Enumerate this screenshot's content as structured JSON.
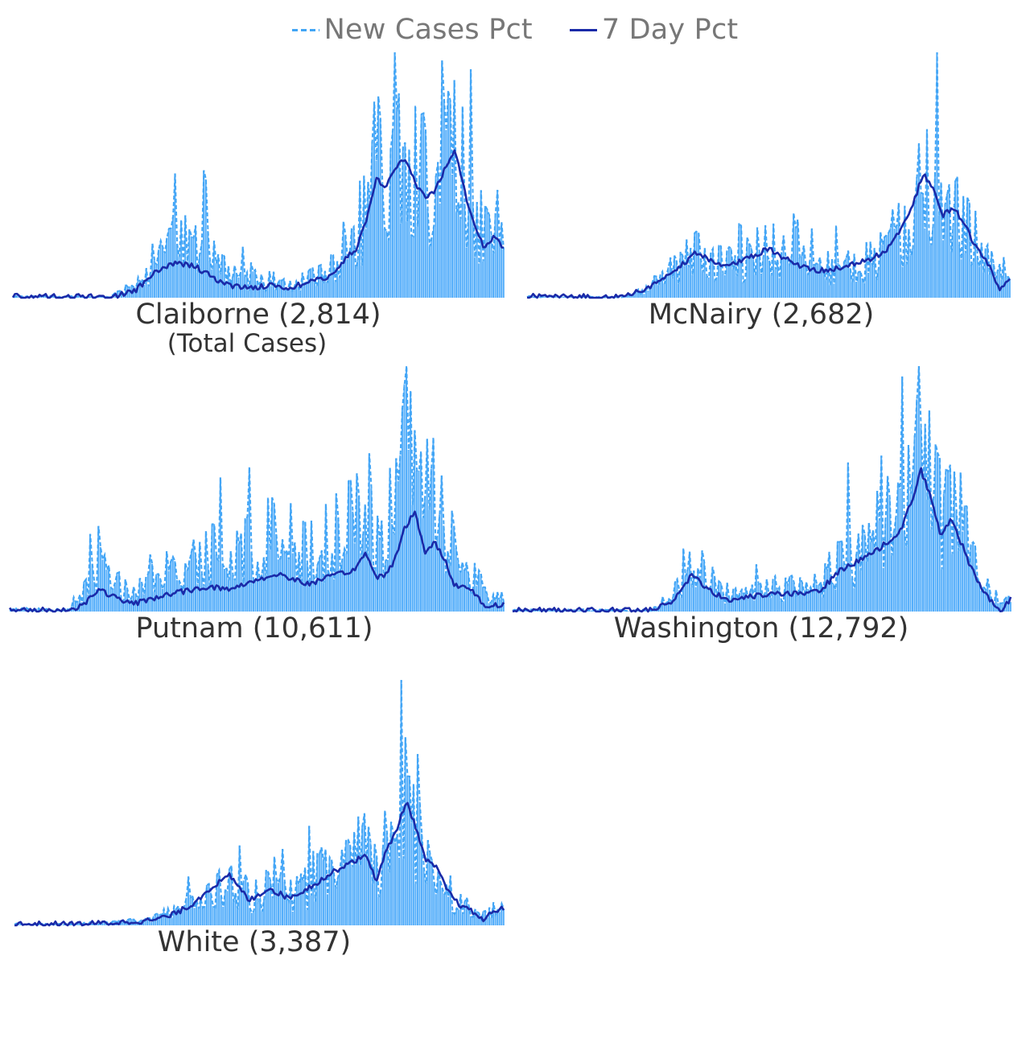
{
  "legend": {
    "new_cases_label": "New Cases Pct",
    "seven_day_label": "7 Day Pct"
  },
  "colors": {
    "bars": "#55aefa",
    "new_cases_line": "#42a5f5",
    "seven_day_line": "#1a2aa8"
  },
  "chart_data": [
    {
      "type": "line",
      "title": "Claiborne (2,814)",
      "subtitle": "(Total Cases)",
      "series_names": [
        "New Cases Pct",
        "7 Day Pct"
      ],
      "x_range": [
        0,
        100
      ],
      "y_range": [
        0,
        100
      ],
      "shape_knots": [
        [
          0,
          0.5
        ],
        [
          20,
          0.3
        ],
        [
          25,
          5
        ],
        [
          29,
          13
        ],
        [
          33,
          18
        ],
        [
          37,
          21
        ],
        [
          40,
          14
        ],
        [
          44,
          8
        ],
        [
          48,
          6
        ],
        [
          52,
          6
        ],
        [
          56,
          5
        ],
        [
          60,
          7
        ],
        [
          64,
          8
        ],
        [
          67,
          16
        ],
        [
          70,
          22
        ],
        [
          72,
          33
        ],
        [
          74,
          50
        ],
        [
          76,
          46
        ],
        [
          78,
          54
        ],
        [
          80,
          57
        ],
        [
          82,
          45
        ],
        [
          84,
          40
        ],
        [
          86,
          45
        ],
        [
          88,
          53
        ],
        [
          90,
          60
        ],
        [
          92,
          42
        ],
        [
          94,
          30
        ],
        [
          96,
          20
        ],
        [
          98,
          28
        ],
        [
          100,
          22
        ]
      ],
      "seven_day_knots": [
        [
          0,
          0.5
        ],
        [
          20,
          0.3
        ],
        [
          25,
          3
        ],
        [
          29,
          10
        ],
        [
          33,
          14
        ],
        [
          37,
          13
        ],
        [
          40,
          9
        ],
        [
          44,
          5
        ],
        [
          48,
          4
        ],
        [
          52,
          5
        ],
        [
          56,
          4
        ],
        [
          60,
          6
        ],
        [
          64,
          8
        ],
        [
          67,
          14
        ],
        [
          70,
          20
        ],
        [
          72,
          31
        ],
        [
          74,
          48
        ],
        [
          76,
          45
        ],
        [
          78,
          53
        ],
        [
          80,
          56
        ],
        [
          82,
          46
        ],
        [
          84,
          40
        ],
        [
          86,
          43
        ],
        [
          88,
          52
        ],
        [
          90,
          60
        ],
        [
          92,
          43
        ],
        [
          94,
          30
        ],
        [
          96,
          20
        ],
        [
          98,
          25
        ],
        [
          100,
          20
        ]
      ]
    },
    {
      "type": "line",
      "title": "McNairy (2,682)",
      "series_names": [
        "New Cases Pct",
        "7 Day Pct"
      ],
      "x_range": [
        0,
        100
      ],
      "y_range": [
        0,
        100
      ],
      "shape_knots": [
        [
          0,
          0.5
        ],
        [
          20,
          0.3
        ],
        [
          24,
          4
        ],
        [
          30,
          12
        ],
        [
          35,
          20
        ],
        [
          40,
          15
        ],
        [
          45,
          18
        ],
        [
          50,
          22
        ],
        [
          55,
          17
        ],
        [
          60,
          12
        ],
        [
          65,
          14
        ],
        [
          70,
          16
        ],
        [
          74,
          20
        ],
        [
          77,
          28
        ],
        [
          80,
          40
        ],
        [
          82,
          50
        ],
        [
          84,
          45
        ],
        [
          86,
          36
        ],
        [
          88,
          38
        ],
        [
          90,
          34
        ],
        [
          92,
          28
        ],
        [
          94,
          20
        ],
        [
          96,
          14
        ],
        [
          98,
          10
        ],
        [
          100,
          8
        ]
      ],
      "seven_day_knots": [
        [
          0,
          0.5
        ],
        [
          20,
          0.3
        ],
        [
          24,
          3
        ],
        [
          30,
          10
        ],
        [
          35,
          18
        ],
        [
          40,
          13
        ],
        [
          45,
          15
        ],
        [
          50,
          20
        ],
        [
          55,
          14
        ],
        [
          60,
          11
        ],
        [
          65,
          12
        ],
        [
          70,
          15
        ],
        [
          74,
          18
        ],
        [
          77,
          26
        ],
        [
          80,
          38
        ],
        [
          82,
          50
        ],
        [
          84,
          44
        ],
        [
          86,
          33
        ],
        [
          88,
          36
        ],
        [
          90,
          32
        ],
        [
          92,
          24
        ],
        [
          94,
          18
        ],
        [
          96,
          12
        ],
        [
          98,
          3
        ],
        [
          100,
          7
        ]
      ]
    },
    {
      "type": "line",
      "title": "Putnam (10,611)",
      "series_names": [
        "New Cases Pct",
        "7 Day Pct"
      ],
      "x_range": [
        0,
        100
      ],
      "y_range": [
        0,
        100
      ],
      "shape_knots": [
        [
          0,
          0.5
        ],
        [
          12,
          0.5
        ],
        [
          15,
          5
        ],
        [
          18,
          12
        ],
        [
          22,
          6
        ],
        [
          25,
          4
        ],
        [
          30,
          7
        ],
        [
          35,
          10
        ],
        [
          40,
          12
        ],
        [
          45,
          10
        ],
        [
          50,
          14
        ],
        [
          55,
          16
        ],
        [
          60,
          12
        ],
        [
          65,
          15
        ],
        [
          70,
          18
        ],
        [
          72,
          25
        ],
        [
          74,
          14
        ],
        [
          76,
          16
        ],
        [
          78,
          22
        ],
        [
          80,
          36
        ],
        [
          82,
          42
        ],
        [
          84,
          26
        ],
        [
          86,
          28
        ],
        [
          88,
          22
        ],
        [
          90,
          12
        ],
        [
          92,
          10
        ],
        [
          94,
          8
        ],
        [
          96,
          4
        ],
        [
          100,
          3
        ]
      ],
      "seven_day_knots": [
        [
          0,
          0.5
        ],
        [
          12,
          0.5
        ],
        [
          15,
          3
        ],
        [
          18,
          9
        ],
        [
          22,
          5
        ],
        [
          25,
          3
        ],
        [
          30,
          6
        ],
        [
          35,
          8
        ],
        [
          40,
          10
        ],
        [
          45,
          9
        ],
        [
          50,
          13
        ],
        [
          55,
          15
        ],
        [
          60,
          11
        ],
        [
          65,
          14
        ],
        [
          70,
          17
        ],
        [
          72,
          24
        ],
        [
          74,
          14
        ],
        [
          76,
          15
        ],
        [
          78,
          21
        ],
        [
          80,
          34
        ],
        [
          82,
          40
        ],
        [
          84,
          24
        ],
        [
          86,
          28
        ],
        [
          88,
          21
        ],
        [
          90,
          11
        ],
        [
          92,
          10
        ],
        [
          94,
          8
        ],
        [
          96,
          2
        ],
        [
          100,
          3
        ]
      ]
    },
    {
      "type": "line",
      "title": "Washington (12,792)",
      "series_names": [
        "New Cases Pct",
        "7 Day Pct"
      ],
      "x_range": [
        0,
        100
      ],
      "y_range": [
        0,
        100
      ],
      "shape_knots": [
        [
          0,
          0.5
        ],
        [
          28,
          0.5
        ],
        [
          32,
          6
        ],
        [
          36,
          14
        ],
        [
          40,
          10
        ],
        [
          44,
          5
        ],
        [
          48,
          6
        ],
        [
          52,
          8
        ],
        [
          58,
          8
        ],
        [
          62,
          10
        ],
        [
          66,
          18
        ],
        [
          70,
          22
        ],
        [
          74,
          28
        ],
        [
          78,
          35
        ],
        [
          80,
          45
        ],
        [
          82,
          56
        ],
        [
          84,
          48
        ],
        [
          86,
          36
        ],
        [
          88,
          42
        ],
        [
          90,
          30
        ],
        [
          92,
          20
        ],
        [
          94,
          12
        ],
        [
          96,
          6
        ],
        [
          98,
          4
        ],
        [
          100,
          5
        ]
      ],
      "seven_day_knots": [
        [
          0,
          0.5
        ],
        [
          28,
          0.5
        ],
        [
          32,
          4
        ],
        [
          36,
          15
        ],
        [
          40,
          8
        ],
        [
          44,
          4
        ],
        [
          48,
          6
        ],
        [
          52,
          7
        ],
        [
          58,
          7
        ],
        [
          62,
          9
        ],
        [
          66,
          17
        ],
        [
          70,
          21
        ],
        [
          74,
          26
        ],
        [
          78,
          33
        ],
        [
          80,
          44
        ],
        [
          82,
          57
        ],
        [
          84,
          46
        ],
        [
          86,
          30
        ],
        [
          88,
          38
        ],
        [
          90,
          28
        ],
        [
          92,
          18
        ],
        [
          94,
          10
        ],
        [
          96,
          4
        ],
        [
          98,
          0
        ],
        [
          100,
          5
        ]
      ]
    },
    {
      "type": "line",
      "title": "White (3,387)",
      "series_names": [
        "New Cases Pct",
        "7 Day Pct"
      ],
      "x_range": [
        0,
        100
      ],
      "y_range": [
        0,
        100
      ],
      "shape_knots": [
        [
          0,
          0.5
        ],
        [
          12,
          0.5
        ],
        [
          20,
          1.5
        ],
        [
          28,
          3
        ],
        [
          32,
          5
        ],
        [
          36,
          8
        ],
        [
          40,
          13
        ],
        [
          44,
          18
        ],
        [
          48,
          12
        ],
        [
          52,
          15
        ],
        [
          56,
          12
        ],
        [
          60,
          16
        ],
        [
          64,
          22
        ],
        [
          68,
          26
        ],
        [
          72,
          30
        ],
        [
          74,
          20
        ],
        [
          76,
          34
        ],
        [
          78,
          40
        ],
        [
          80,
          50
        ],
        [
          82,
          42
        ],
        [
          84,
          28
        ],
        [
          86,
          24
        ],
        [
          88,
          18
        ],
        [
          90,
          12
        ],
        [
          92,
          8
        ],
        [
          94,
          6
        ],
        [
          96,
          4
        ],
        [
          98,
          6
        ],
        [
          100,
          7
        ]
      ],
      "seven_day_knots": [
        [
          0,
          0.5
        ],
        [
          12,
          0.5
        ],
        [
          20,
          1
        ],
        [
          28,
          2
        ],
        [
          32,
          4
        ],
        [
          36,
          8
        ],
        [
          40,
          15
        ],
        [
          44,
          20
        ],
        [
          48,
          10
        ],
        [
          52,
          15
        ],
        [
          56,
          11
        ],
        [
          60,
          15
        ],
        [
          64,
          20
        ],
        [
          68,
          25
        ],
        [
          72,
          28
        ],
        [
          74,
          18
        ],
        [
          76,
          30
        ],
        [
          78,
          38
        ],
        [
          80,
          50
        ],
        [
          82,
          40
        ],
        [
          84,
          26
        ],
        [
          86,
          24
        ],
        [
          88,
          16
        ],
        [
          90,
          10
        ],
        [
          92,
          7
        ],
        [
          94,
          5
        ],
        [
          96,
          2
        ],
        [
          98,
          6
        ],
        [
          100,
          7
        ]
      ]
    }
  ]
}
